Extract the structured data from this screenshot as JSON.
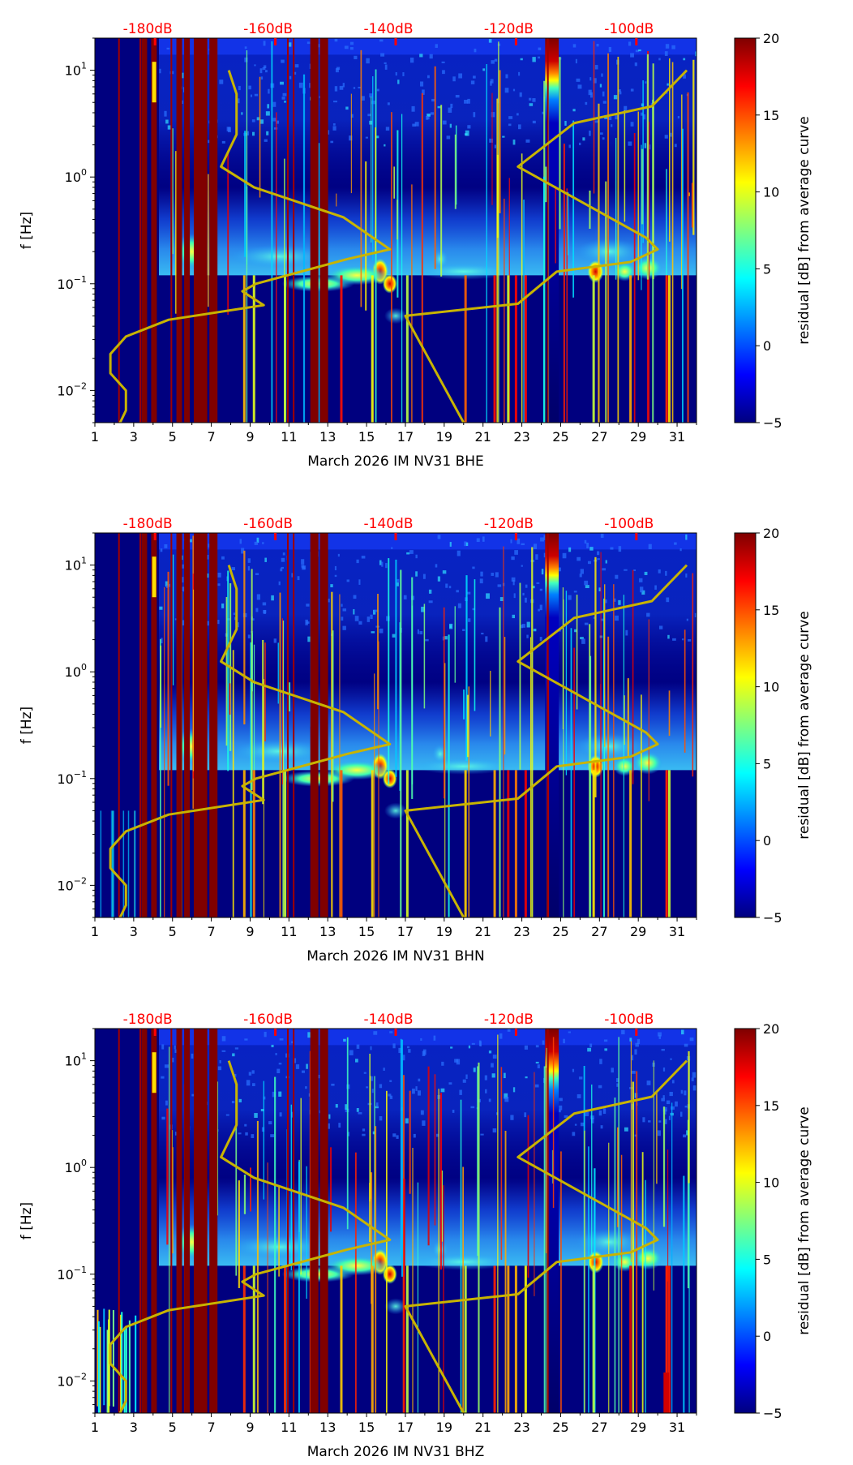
{
  "chart_data": [
    {
      "type": "heatmap",
      "title": "",
      "xlabel": "March 2026 IM NV31  BHE",
      "ylabel": "f [Hz]",
      "xlim": [
        1,
        32
      ],
      "ylim": [
        0.005,
        20
      ],
      "yscale": "log",
      "xticks": [
        "1",
        "3",
        "5",
        "7",
        "9",
        "11",
        "13",
        "15",
        "17",
        "19",
        "21",
        "23",
        "25",
        "27",
        "29",
        "31"
      ],
      "yticks": [
        {
          "base": "10",
          "exp": "1",
          "value": 10
        },
        {
          "base": "10",
          "exp": "0",
          "value": 1
        },
        {
          "base": "10",
          "exp": "−1",
          "value": 0.1
        },
        {
          "base": "10",
          "exp": "−2",
          "value": 0.01
        }
      ],
      "top_labels": [
        {
          "text": "-180dB",
          "day": 4.1
        },
        {
          "text": "-160dB",
          "day": 10.3
        },
        {
          "text": "-140dB",
          "day": 16.5
        },
        {
          "text": "-120dB",
          "day": 22.7
        },
        {
          "text": "-100dB",
          "day": 28.9
        }
      ],
      "colorbar": {
        "label": "residual [dB] from average curve",
        "range": [
          -5,
          20
        ],
        "ticks": [
          "20",
          "15",
          "10",
          "5",
          "0",
          "−5"
        ]
      },
      "curve_left": [
        [
          7.9,
          10
        ],
        [
          8.3,
          6
        ],
        [
          8.3,
          2.5
        ],
        [
          7.5,
          1.25
        ],
        [
          9.2,
          0.8
        ],
        [
          13.8,
          0.42
        ],
        [
          16.2,
          0.21
        ],
        [
          14,
          0.17
        ],
        [
          9.3,
          0.1
        ],
        [
          8.6,
          0.085
        ],
        [
          9.7,
          0.063
        ],
        [
          4.8,
          0.046
        ],
        [
          2.6,
          0.032
        ],
        [
          1.8,
          0.022
        ],
        [
          1.8,
          0.0145
        ],
        [
          2.6,
          0.01
        ],
        [
          2.6,
          0.0065
        ],
        [
          2.3,
          0.005
        ]
      ],
      "curve_right": [
        [
          20,
          0.005
        ],
        [
          17,
          0.05
        ],
        [
          22.8,
          0.065
        ],
        [
          24.8,
          0.13
        ],
        [
          28.6,
          0.16
        ],
        [
          30,
          0.21
        ],
        [
          29.4,
          0.27
        ],
        [
          22.8,
          1.25
        ],
        [
          25.7,
          3.2
        ],
        [
          29.7,
          4.6
        ],
        [
          31.5,
          10
        ]
      ],
      "saturated_days": [
        3.4,
        3.9,
        5.2,
        5.6,
        6.1,
        6.5,
        6.9,
        12.1,
        12.6
      ],
      "variant": "BHE"
    },
    {
      "type": "heatmap",
      "title": "",
      "xlabel": "March 2026 IM NV31  BHN",
      "ylabel": "f [Hz]",
      "xlim": [
        1,
        32
      ],
      "ylim": [
        0.005,
        20
      ],
      "yscale": "log",
      "xticks": [
        "1",
        "3",
        "5",
        "7",
        "9",
        "11",
        "13",
        "15",
        "17",
        "19",
        "21",
        "23",
        "25",
        "27",
        "29",
        "31"
      ],
      "yticks": [
        {
          "base": "10",
          "exp": "1",
          "value": 10
        },
        {
          "base": "10",
          "exp": "0",
          "value": 1
        },
        {
          "base": "10",
          "exp": "−1",
          "value": 0.1
        },
        {
          "base": "10",
          "exp": "−2",
          "value": 0.01
        }
      ],
      "top_labels": [
        {
          "text": "-180dB",
          "day": 4.1
        },
        {
          "text": "-160dB",
          "day": 10.3
        },
        {
          "text": "-140dB",
          "day": 16.5
        },
        {
          "text": "-120dB",
          "day": 22.7
        },
        {
          "text": "-100dB",
          "day": 28.9
        }
      ],
      "colorbar": {
        "label": "residual [dB] from average curve",
        "range": [
          -5,
          20
        ],
        "ticks": [
          "20",
          "15",
          "10",
          "5",
          "0",
          "−5"
        ]
      },
      "curve_left": [
        [
          7.9,
          10
        ],
        [
          8.3,
          6
        ],
        [
          8.3,
          2.5
        ],
        [
          7.5,
          1.25
        ],
        [
          9.2,
          0.8
        ],
        [
          13.8,
          0.42
        ],
        [
          16.2,
          0.21
        ],
        [
          14,
          0.17
        ],
        [
          9.3,
          0.1
        ],
        [
          8.6,
          0.085
        ],
        [
          9.7,
          0.063
        ],
        [
          4.8,
          0.046
        ],
        [
          2.6,
          0.032
        ],
        [
          1.8,
          0.022
        ],
        [
          1.8,
          0.0145
        ],
        [
          2.6,
          0.01
        ],
        [
          2.6,
          0.0065
        ],
        [
          2.3,
          0.005
        ]
      ],
      "curve_right": [
        [
          20,
          0.005
        ],
        [
          17,
          0.05
        ],
        [
          22.8,
          0.065
        ],
        [
          24.8,
          0.13
        ],
        [
          28.6,
          0.16
        ],
        [
          30,
          0.21
        ],
        [
          29.4,
          0.27
        ],
        [
          22.8,
          1.25
        ],
        [
          25.7,
          3.2
        ],
        [
          29.7,
          4.6
        ],
        [
          31.5,
          10
        ]
      ],
      "saturated_days": [
        3.4,
        3.9,
        5.2,
        5.6,
        6.1,
        6.5,
        6.9,
        12.1,
        12.6
      ],
      "variant": "BHN"
    },
    {
      "type": "heatmap",
      "title": "",
      "xlabel": "March 2026 IM NV31  BHZ",
      "ylabel": "f [Hz]",
      "xlim": [
        1,
        32
      ],
      "ylim": [
        0.005,
        20
      ],
      "yscale": "log",
      "xticks": [
        "1",
        "3",
        "5",
        "7",
        "9",
        "11",
        "13",
        "15",
        "17",
        "19",
        "21",
        "23",
        "25",
        "27",
        "29",
        "31"
      ],
      "yticks": [
        {
          "base": "10",
          "exp": "1",
          "value": 10
        },
        {
          "base": "10",
          "exp": "0",
          "value": 1
        },
        {
          "base": "10",
          "exp": "−1",
          "value": 0.1
        },
        {
          "base": "10",
          "exp": "−2",
          "value": 0.01
        }
      ],
      "top_labels": [
        {
          "text": "-180dB",
          "day": 4.1
        },
        {
          "text": "-160dB",
          "day": 10.3
        },
        {
          "text": "-140dB",
          "day": 16.5
        },
        {
          "text": "-120dB",
          "day": 22.7
        },
        {
          "text": "-100dB",
          "day": 28.9
        }
      ],
      "colorbar": {
        "label": "residual [dB] from average curve",
        "range": [
          -5,
          20
        ],
        "ticks": [
          "20",
          "15",
          "10",
          "5",
          "0",
          "−5"
        ]
      },
      "curve_left": [
        [
          7.9,
          10
        ],
        [
          8.3,
          6
        ],
        [
          8.3,
          2.5
        ],
        [
          7.5,
          1.25
        ],
        [
          9.2,
          0.8
        ],
        [
          13.8,
          0.42
        ],
        [
          16.2,
          0.21
        ],
        [
          14,
          0.17
        ],
        [
          9.3,
          0.1
        ],
        [
          8.6,
          0.085
        ],
        [
          9.7,
          0.063
        ],
        [
          4.8,
          0.046
        ],
        [
          2.6,
          0.032
        ],
        [
          1.8,
          0.022
        ],
        [
          1.8,
          0.0145
        ],
        [
          2.6,
          0.01
        ],
        [
          2.6,
          0.0065
        ],
        [
          2.3,
          0.005
        ]
      ],
      "curve_right": [
        [
          20,
          0.005
        ],
        [
          17,
          0.05
        ],
        [
          22.8,
          0.065
        ],
        [
          24.8,
          0.13
        ],
        [
          28.6,
          0.16
        ],
        [
          30,
          0.21
        ],
        [
          29.4,
          0.27
        ],
        [
          22.8,
          1.25
        ],
        [
          25.7,
          3.2
        ],
        [
          29.7,
          4.6
        ],
        [
          31.5,
          10
        ]
      ],
      "saturated_days": [
        3.4,
        3.9,
        5.2,
        5.6,
        6.1,
        6.5,
        6.9,
        12.1,
        12.6
      ],
      "variant": "BHZ"
    }
  ],
  "colors": {
    "curve": "#c8b400",
    "saturated": "#800000",
    "background": "#00007f",
    "top_label": "#ff0000"
  }
}
